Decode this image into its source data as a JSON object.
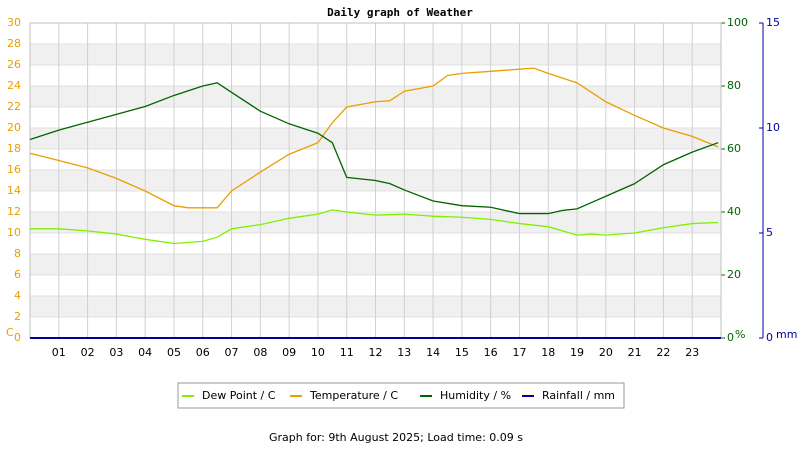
{
  "chart_data": {
    "type": "line",
    "title": "Daily graph of Weather",
    "footer": "Graph for: 9th August 2025; Load time: 0.09 s",
    "ylabel": "C",
    "y2label": "%",
    "y3label": "mm",
    "xlim": [
      0,
      24
    ],
    "xticks": [
      {
        "value": 1,
        "label": "01"
      },
      {
        "value": 2,
        "label": "02"
      },
      {
        "value": 3,
        "label": "03"
      },
      {
        "value": 4,
        "label": "04"
      },
      {
        "value": 5,
        "label": "05"
      },
      {
        "value": 6,
        "label": "06"
      },
      {
        "value": 7,
        "label": "07"
      },
      {
        "value": 8,
        "label": "08"
      },
      {
        "value": 9,
        "label": "09"
      },
      {
        "value": 10,
        "label": "10"
      },
      {
        "value": 11,
        "label": "11"
      },
      {
        "value": 12,
        "label": "12"
      },
      {
        "value": 13,
        "label": "13"
      },
      {
        "value": 14,
        "label": "14"
      },
      {
        "value": 15,
        "label": "15"
      },
      {
        "value": 16,
        "label": "16"
      },
      {
        "value": 17,
        "label": "17"
      },
      {
        "value": 18,
        "label": "18"
      },
      {
        "value": 19,
        "label": "19"
      },
      {
        "value": 20,
        "label": "20"
      },
      {
        "value": 21,
        "label": "21"
      },
      {
        "value": 22,
        "label": "22"
      },
      {
        "value": 23,
        "label": "23"
      }
    ],
    "ylim": [
      0,
      30
    ],
    "yticks": [
      0,
      2,
      4,
      6,
      8,
      10,
      12,
      14,
      16,
      18,
      20,
      22,
      24,
      26,
      28,
      30
    ],
    "y2lim": [
      0,
      100
    ],
    "y2ticks": [
      0,
      20,
      40,
      60,
      80,
      100
    ],
    "y3lim": [
      0,
      15
    ],
    "y3ticks": [
      0,
      5,
      10,
      15
    ],
    "grid": true,
    "series": [
      {
        "name": "Dew Point / C",
        "color": "#80f000",
        "axis": "y",
        "x": [
          0,
          1,
          2,
          3,
          4,
          5,
          6,
          6.5,
          7,
          8,
          9,
          10,
          10.5,
          11,
          12,
          13,
          14,
          15,
          16,
          17,
          18,
          19,
          19.5,
          20,
          21,
          22,
          23,
          23.9
        ],
        "values": [
          10.4,
          10.4,
          10.2,
          9.9,
          9.4,
          9,
          9.2,
          9.6,
          10.4,
          10.8,
          11.4,
          11.8,
          12.2,
          12,
          11.7,
          11.8,
          11.6,
          11.5,
          11.3,
          10.9,
          10.6,
          9.8,
          9.9,
          9.8,
          10,
          10.5,
          10.9,
          11
        ]
      },
      {
        "name": "Temperature / C",
        "color": "#e8a000",
        "axis": "y",
        "x": [
          0,
          1,
          2,
          3,
          4,
          5,
          5.5,
          6,
          6.5,
          7,
          8,
          9,
          10,
          10.5,
          11,
          12,
          12.5,
          13,
          14,
          14.5,
          15,
          16,
          17,
          17.5,
          18,
          19,
          20,
          21,
          22,
          23,
          23.9
        ],
        "values": [
          17.6,
          16.9,
          16.2,
          15.2,
          14,
          12.6,
          12.4,
          12.4,
          12.4,
          14,
          15.8,
          17.5,
          18.6,
          20.5,
          22,
          22.5,
          22.6,
          23.5,
          24,
          25,
          25.2,
          25.4,
          25.6,
          25.7,
          25.2,
          24.3,
          22.5,
          21.2,
          20,
          19.2,
          18.2
        ]
      },
      {
        "name": "Humidity / %",
        "color": "#006400",
        "axis": "y2",
        "x": [
          0,
          1,
          2,
          3,
          4,
          5,
          6,
          6.5,
          7,
          8,
          9,
          10,
          10.5,
          11,
          12,
          12.5,
          13,
          14,
          15,
          16,
          17,
          18,
          18.5,
          19,
          19.5,
          20,
          21,
          22,
          23,
          23.9
        ],
        "values": [
          63,
          66,
          68.5,
          71,
          73.5,
          77,
          80,
          81,
          78,
          72,
          68,
          65,
          62,
          51,
          50,
          49,
          47,
          43.5,
          42,
          41.5,
          39.5,
          39.5,
          40.5,
          41,
          43,
          45,
          49,
          55,
          59,
          62
        ]
      },
      {
        "name": "Rainfall / mm",
        "color": "#0000a0",
        "axis": "y3",
        "x": [
          0,
          23.9
        ],
        "values": [
          0,
          0
        ]
      }
    ]
  }
}
